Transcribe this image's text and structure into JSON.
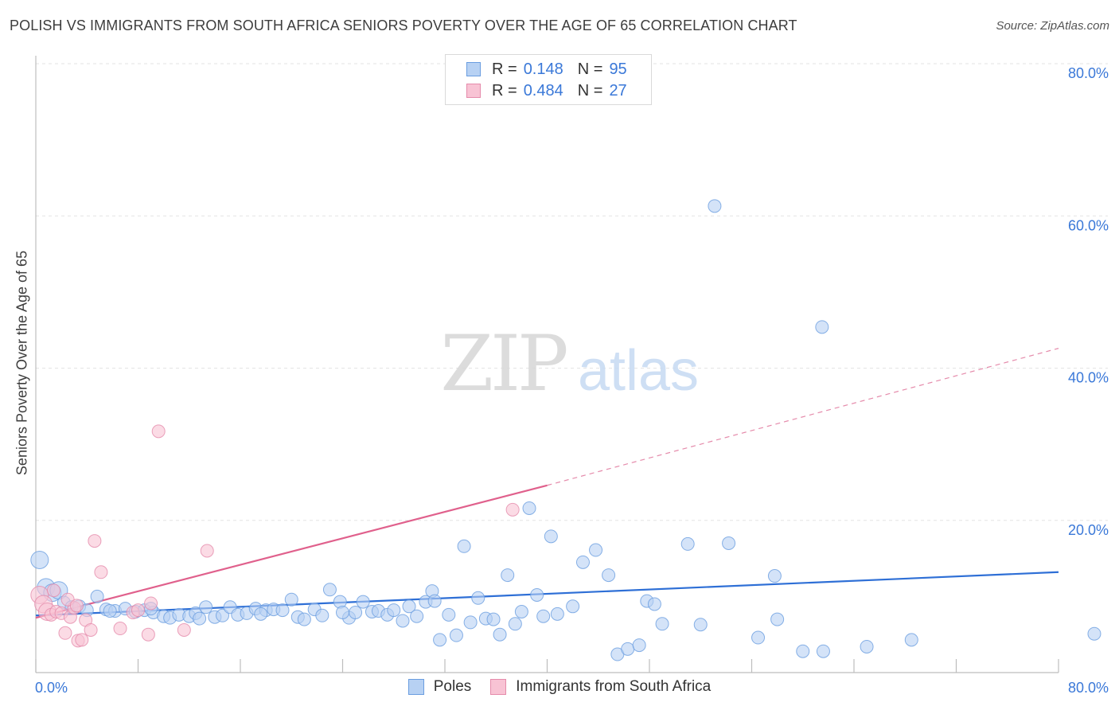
{
  "chart_data": {
    "type": "scatter",
    "title": "POLISH VS IMMIGRANTS FROM SOUTH AFRICA SENIORS POVERTY OVER THE AGE OF 65 CORRELATION CHART",
    "source": "Source: ZipAtlas.com",
    "ylabel": "Seniors Poverty Over the Age of 65",
    "xlabel": "",
    "xlim": [
      0,
      80
    ],
    "ylim": [
      0,
      80
    ],
    "x_tick_labels": [
      "0.0%",
      "80.0%"
    ],
    "y_tick_values": [
      20,
      40,
      60,
      80
    ],
    "y_tick_labels": [
      "20.0%",
      "40.0%",
      "60.0%",
      "80.0%"
    ],
    "watermark": "ZIPatlas",
    "legend_stats": [
      {
        "r_label": "R =",
        "r_value": "0.148",
        "n_label": "N =",
        "n_value": "95"
      },
      {
        "r_label": "R =",
        "r_value": "0.484",
        "n_label": "N =",
        "n_value": "27"
      }
    ],
    "series": [
      {
        "name": "Poles",
        "color": "#6a9de0",
        "fill": "#b7d1f3",
        "trend": {
          "x": [
            0,
            80
          ],
          "y": [
            7.5,
            13.2
          ],
          "dashed_from": null
        },
        "points": [
          [
            0.3,
            14.8
          ],
          [
            0.8,
            11.2
          ],
          [
            1.3,
            10.5
          ],
          [
            1.8,
            10.8
          ],
          [
            2.2,
            9.2
          ],
          [
            2.8,
            8.6
          ],
          [
            3.4,
            8.7
          ],
          [
            4.0,
            8.2
          ],
          [
            4.8,
            10.0
          ],
          [
            5.5,
            8.3
          ],
          [
            6.2,
            8.1
          ],
          [
            7.0,
            8.4
          ],
          [
            7.8,
            8.0
          ],
          [
            8.5,
            8.2
          ],
          [
            9.2,
            7.9
          ],
          [
            10.0,
            7.4
          ],
          [
            10.5,
            7.2
          ],
          [
            11.2,
            7.6
          ],
          [
            12.0,
            7.4
          ],
          [
            12.5,
            7.8
          ],
          [
            13.3,
            8.6
          ],
          [
            14.0,
            7.3
          ],
          [
            14.6,
            7.5
          ],
          [
            15.2,
            8.6
          ],
          [
            15.8,
            7.6
          ],
          [
            16.5,
            7.8
          ],
          [
            17.2,
            8.4
          ],
          [
            18.0,
            8.2
          ],
          [
            18.6,
            8.3
          ],
          [
            19.3,
            8.2
          ],
          [
            20.0,
            9.6
          ],
          [
            20.5,
            7.3
          ],
          [
            21.0,
            7.0
          ],
          [
            21.8,
            8.3
          ],
          [
            22.4,
            7.5
          ],
          [
            23.0,
            10.9
          ],
          [
            23.8,
            9.3
          ],
          [
            24.5,
            7.2
          ],
          [
            25.0,
            7.9
          ],
          [
            25.6,
            9.3
          ],
          [
            26.3,
            8.0
          ],
          [
            26.8,
            8.1
          ],
          [
            27.5,
            7.6
          ],
          [
            28.0,
            8.2
          ],
          [
            28.7,
            6.8
          ],
          [
            29.2,
            8.7
          ],
          [
            29.8,
            7.4
          ],
          [
            30.5,
            9.3
          ],
          [
            31.0,
            10.7
          ],
          [
            31.6,
            4.3
          ],
          [
            32.3,
            7.6
          ],
          [
            32.9,
            4.9
          ],
          [
            33.5,
            16.6
          ],
          [
            34.0,
            6.6
          ],
          [
            34.6,
            9.8
          ],
          [
            35.2,
            7.1
          ],
          [
            35.8,
            7.0
          ],
          [
            36.3,
            5.0
          ],
          [
            36.9,
            12.8
          ],
          [
            37.5,
            6.4
          ],
          [
            38.0,
            8.0
          ],
          [
            38.6,
            21.6
          ],
          [
            39.2,
            10.2
          ],
          [
            39.7,
            7.4
          ],
          [
            40.3,
            17.9
          ],
          [
            40.8,
            7.7
          ],
          [
            42.0,
            8.7
          ],
          [
            42.8,
            14.5
          ],
          [
            43.8,
            16.1
          ],
          [
            44.8,
            12.8
          ],
          [
            45.5,
            2.4
          ],
          [
            46.3,
            3.1
          ],
          [
            47.2,
            3.6
          ],
          [
            47.8,
            9.4
          ],
          [
            48.4,
            9.0
          ],
          [
            49.0,
            6.4
          ],
          [
            51.0,
            16.9
          ],
          [
            52.0,
            6.3
          ],
          [
            53.1,
            61.3
          ],
          [
            54.2,
            17.0
          ],
          [
            56.5,
            4.6
          ],
          [
            57.8,
            12.7
          ],
          [
            58.0,
            7.0
          ],
          [
            60.0,
            2.8
          ],
          [
            61.5,
            45.4
          ],
          [
            61.6,
            2.8
          ],
          [
            65.0,
            3.4
          ],
          [
            68.5,
            4.3
          ],
          [
            82.8,
            5.1
          ],
          [
            5.8,
            8.1
          ],
          [
            9.0,
            8.4
          ],
          [
            12.8,
            7.1
          ],
          [
            17.6,
            7.7
          ],
          [
            24.0,
            7.9
          ],
          [
            31.2,
            9.4
          ]
        ]
      },
      {
        "name": "Immigrants from South Africa",
        "color": "#e58bab",
        "fill": "#f8c3d4",
        "trend": {
          "x": [
            0,
            40
          ],
          "y": [
            7.2,
            24.6
          ],
          "dashed_to_x": 80,
          "dashed_to_y": 42.6
        },
        "points": [
          [
            0.3,
            10.2
          ],
          [
            0.6,
            9.0
          ],
          [
            0.9,
            8.0
          ],
          [
            1.2,
            7.6
          ],
          [
            1.6,
            8.0
          ],
          [
            2.0,
            7.8
          ],
          [
            2.3,
            5.2
          ],
          [
            2.7,
            7.3
          ],
          [
            3.0,
            8.5
          ],
          [
            3.3,
            4.2
          ],
          [
            3.6,
            4.3
          ],
          [
            3.9,
            6.9
          ],
          [
            4.3,
            5.6
          ],
          [
            4.6,
            17.3
          ],
          [
            5.1,
            13.2
          ],
          [
            6.6,
            5.8
          ],
          [
            7.6,
            7.9
          ],
          [
            8.8,
            5.0
          ],
          [
            9.0,
            9.1
          ],
          [
            9.6,
            31.7
          ],
          [
            11.6,
            5.6
          ],
          [
            13.4,
            16.0
          ],
          [
            37.3,
            21.4
          ],
          [
            1.4,
            10.8
          ],
          [
            2.5,
            9.6
          ],
          [
            3.2,
            8.8
          ],
          [
            8.0,
            8.2
          ]
        ]
      }
    ]
  }
}
